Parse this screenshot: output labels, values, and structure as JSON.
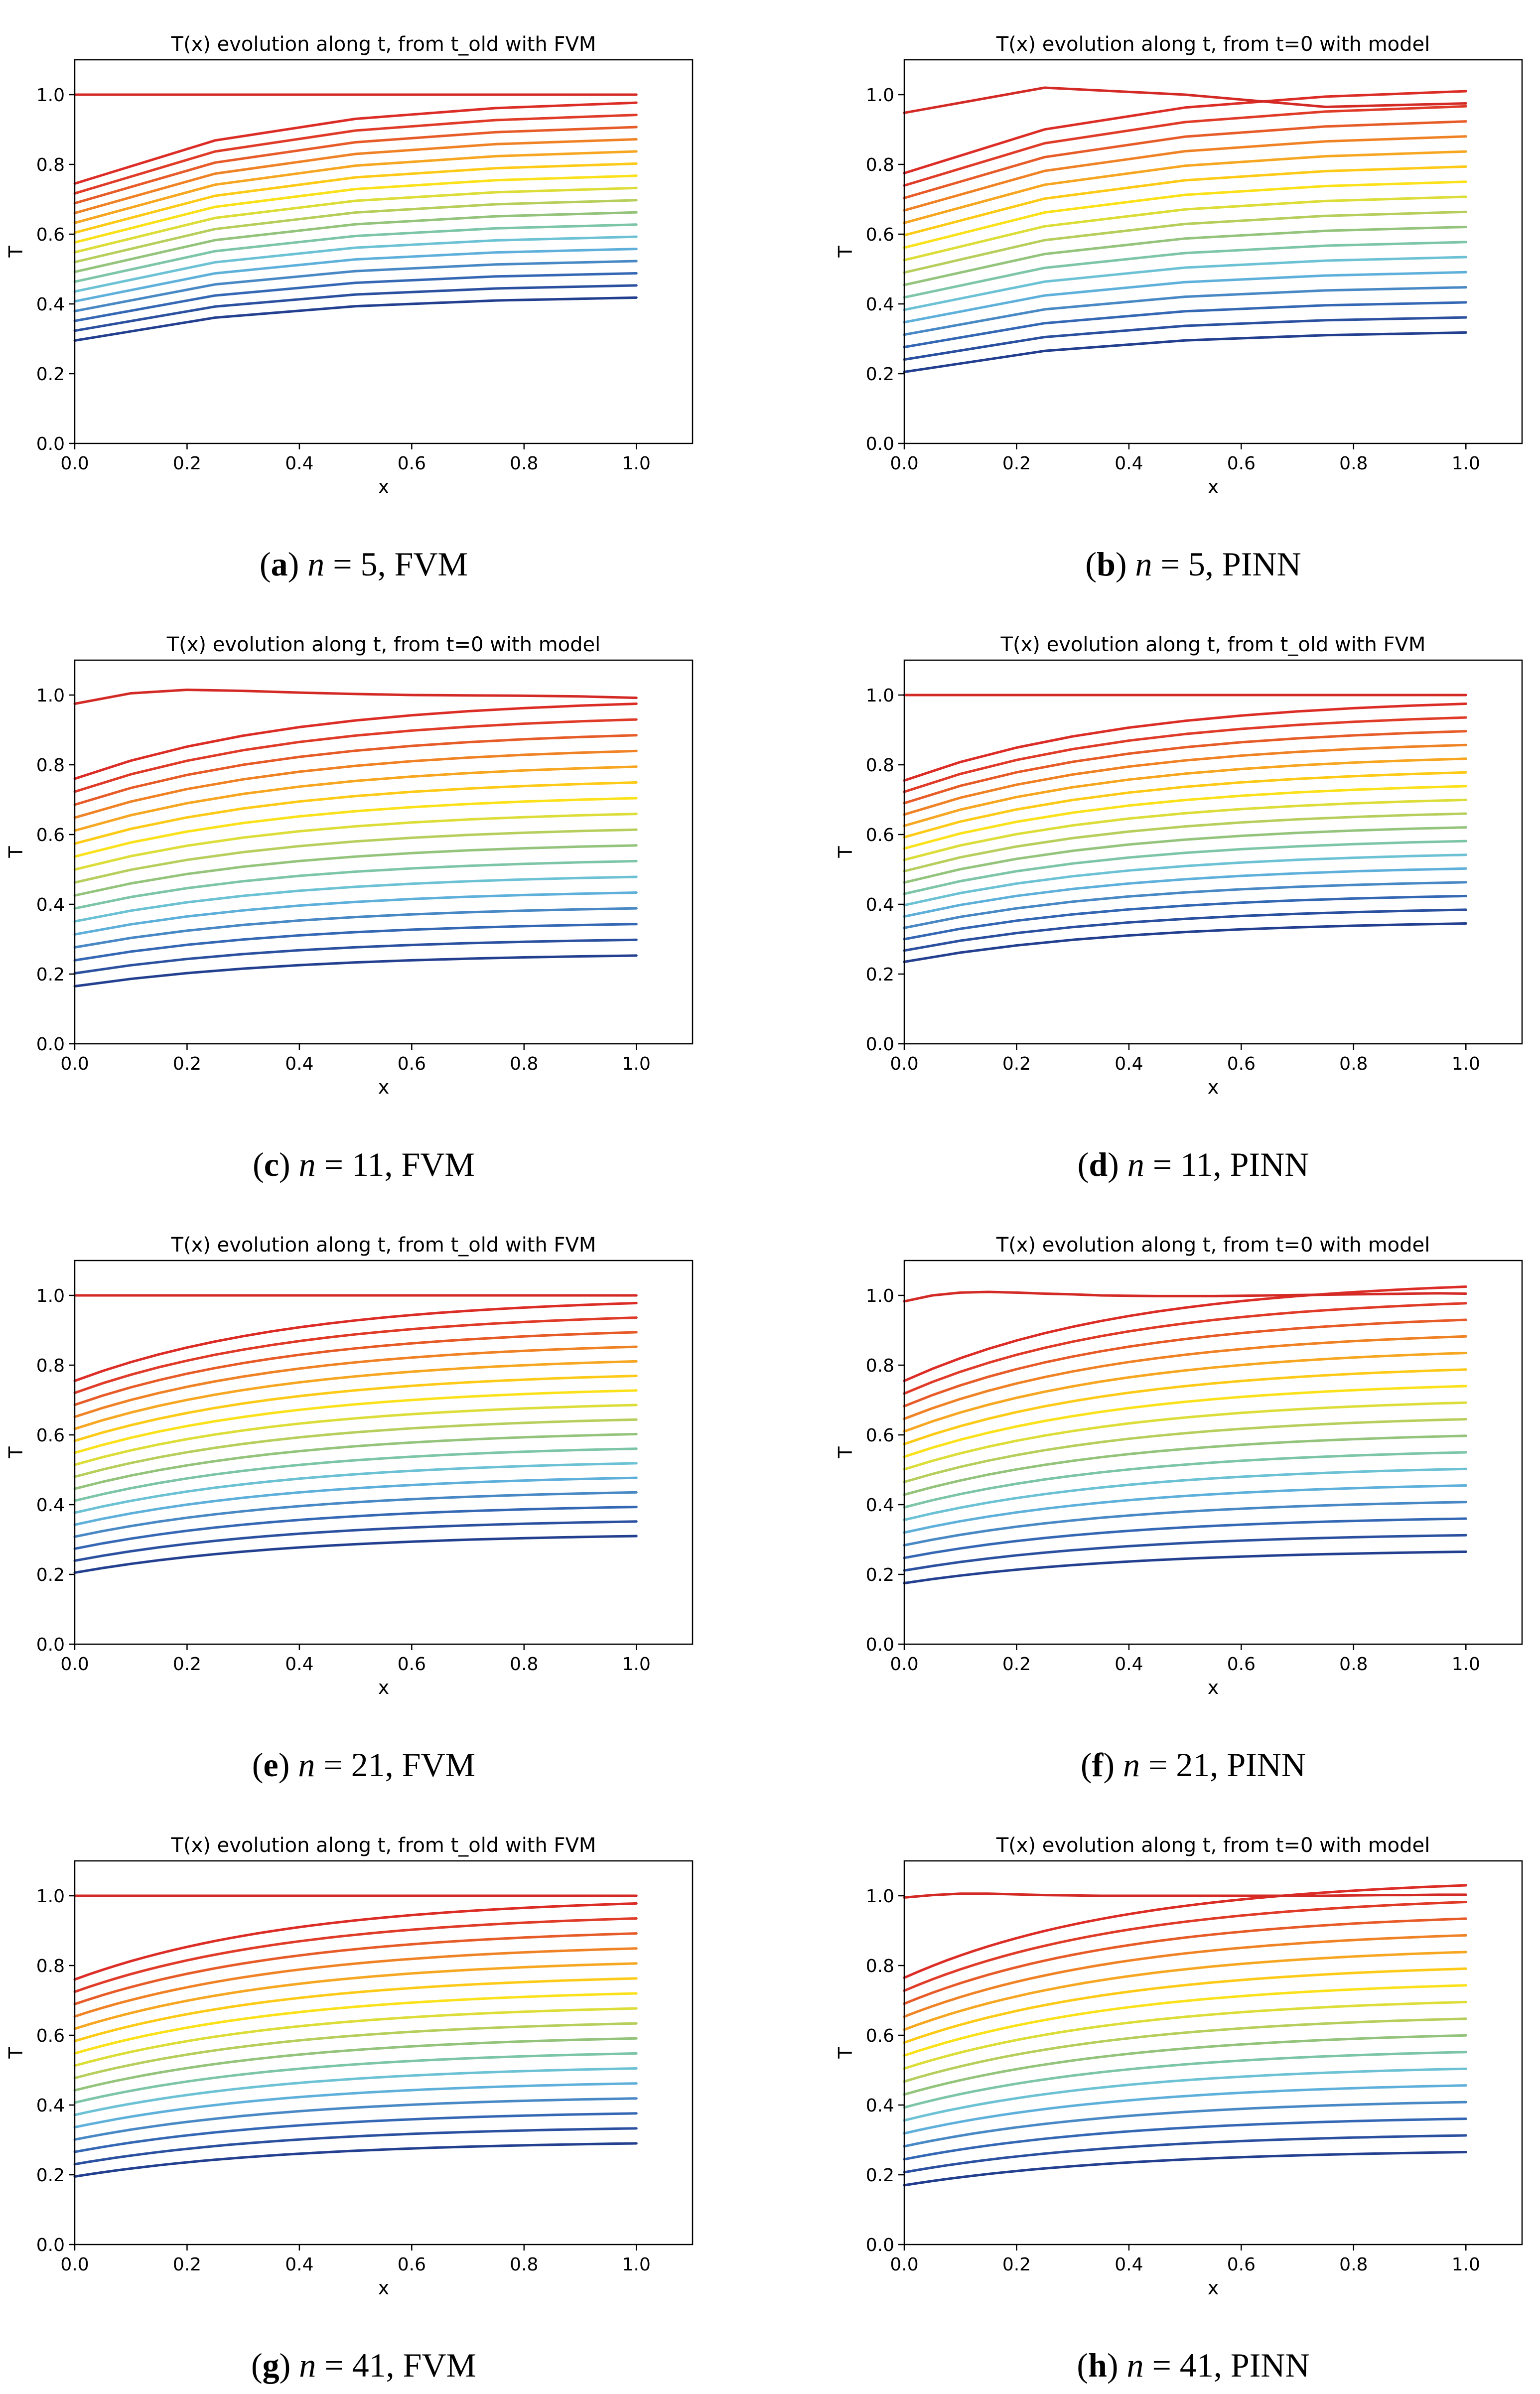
{
  "figure": {
    "palette": [
      "#233f8f",
      "#2a509f",
      "#3568b4",
      "#4888c4",
      "#5eb0db",
      "#6cc2d4",
      "#7cc5a6",
      "#94c47c",
      "#b6cf5c",
      "#dcdd38",
      "#fbe11a",
      "#fcca17",
      "#f6a621",
      "#f08226",
      "#e65b28",
      "#df3b28",
      "#dc2c26",
      "#d42a26"
    ]
  },
  "chart_data": [
    {
      "id": "a",
      "type": "line",
      "title": "T(x) evolution along t, from t_old with FVM",
      "xlabel": "x",
      "ylabel": "T",
      "xlim": [
        0,
        1.1
      ],
      "ylim": [
        0,
        1.1
      ],
      "xticks": [
        "0.0",
        "0.2",
        "0.4",
        "0.6",
        "0.8",
        "1.0"
      ],
      "yticks": [
        "0.0",
        "0.2",
        "0.4",
        "0.6",
        "0.8",
        "1.0"
      ],
      "caption": {
        "letter": "a",
        "n_label": "n",
        "rest": " = 5, FVM"
      },
      "n_curves": 18,
      "x": [
        0,
        0.25,
        0.5,
        0.75,
        1.0
      ],
      "bottom_curve": {
        "start": 0.295,
        "end": 0.418
      },
      "top_curve": {
        "start": 1.0,
        "end": 1.0
      },
      "second_curve": {
        "start": 0.745,
        "end": 0.977
      },
      "shape": 0.36,
      "anomaly": null
    },
    {
      "id": "b",
      "type": "line",
      "title": "T(x) evolution along t, from t=0 with model",
      "xlabel": "x",
      "ylabel": "T",
      "xlim": [
        0,
        1.1
      ],
      "ylim": [
        0,
        1.1
      ],
      "xticks": [
        "0.0",
        "0.2",
        "0.4",
        "0.6",
        "0.8",
        "1.0"
      ],
      "yticks": [
        "0.0",
        "0.2",
        "0.4",
        "0.6",
        "0.8",
        "1.0"
      ],
      "caption": {
        "letter": "b",
        "n_label": "n",
        "rest": " = 5, PINN"
      },
      "n_curves": 18,
      "x": [
        0,
        0.25,
        0.5,
        0.75,
        1.0
      ],
      "bottom_curve": {
        "start": 0.205,
        "end": 0.318
      },
      "top_curve": {
        "start": 0.775,
        "end": 1.01
      },
      "second_curve": null,
      "shape": 0.36,
      "anomaly": {
        "x": [
          0,
          0.25,
          0.5,
          0.75,
          1.0
        ],
        "y": [
          0.948,
          1.02,
          1.0,
          0.965,
          0.975
        ]
      }
    },
    {
      "id": "c",
      "type": "line",
      "title": "T(x) evolution along t, from t=0 with model",
      "xlabel": "x",
      "ylabel": "T",
      "xlim": [
        0,
        1.1
      ],
      "ylim": [
        0,
        1.1
      ],
      "xticks": [
        "0.0",
        "0.2",
        "0.4",
        "0.6",
        "0.8",
        "1.0"
      ],
      "yticks": [
        "0.0",
        "0.2",
        "0.4",
        "0.6",
        "0.8",
        "1.0"
      ],
      "caption": {
        "letter": "c",
        "n_label": "n",
        "rest": " = 11, FVM"
      },
      "n_curves": 18,
      "x": [
        0,
        0.1,
        0.2,
        0.3,
        0.4,
        0.5,
        0.6,
        0.7,
        0.8,
        0.9,
        1.0
      ],
      "bottom_curve": {
        "start": 0.165,
        "end": 0.253
      },
      "top_curve": {
        "start": 0.76,
        "end": 0.975
      },
      "second_curve": null,
      "shape": 0.4,
      "anomaly": {
        "x": [
          0,
          0.1,
          0.2,
          0.3,
          0.4,
          0.5,
          0.6,
          0.7,
          0.8,
          0.9,
          1.0
        ],
        "y": [
          0.975,
          1.005,
          1.015,
          1.012,
          1.007,
          1.003,
          1.0,
          0.999,
          0.998,
          0.996,
          0.992
        ]
      }
    },
    {
      "id": "d",
      "type": "line",
      "title": "T(x) evolution along t, from t_old with FVM",
      "xlabel": "x",
      "ylabel": "T",
      "xlim": [
        0,
        1.1
      ],
      "ylim": [
        0,
        1.1
      ],
      "xticks": [
        "0.0",
        "0.2",
        "0.4",
        "0.6",
        "0.8",
        "1.0"
      ],
      "yticks": [
        "0.0",
        "0.2",
        "0.4",
        "0.6",
        "0.8",
        "1.0"
      ],
      "caption": {
        "letter": "d",
        "n_label": "n",
        "rest": " = 11, PINN"
      },
      "n_curves": 18,
      "x": [
        0,
        0.1,
        0.2,
        0.3,
        0.4,
        0.5,
        0.6,
        0.7,
        0.8,
        0.9,
        1.0
      ],
      "bottom_curve": {
        "start": 0.235,
        "end": 0.345
      },
      "top_curve": {
        "start": 1.0,
        "end": 1.0
      },
      "second_curve": {
        "start": 0.755,
        "end": 0.975
      },
      "shape": 0.4,
      "anomaly": null
    },
    {
      "id": "e",
      "type": "line",
      "title": "T(x) evolution along t, from t_old with FVM",
      "xlabel": "x",
      "ylabel": "T",
      "xlim": [
        0,
        1.1
      ],
      "ylim": [
        0,
        1.1
      ],
      "xticks": [
        "0.0",
        "0.2",
        "0.4",
        "0.6",
        "0.8",
        "1.0"
      ],
      "yticks": [
        "0.0",
        "0.2",
        "0.4",
        "0.6",
        "0.8",
        "1.0"
      ],
      "caption": {
        "letter": "e",
        "n_label": "n",
        "rest": " = 21, FVM"
      },
      "n_curves": 18,
      "x": [
        0,
        0.05,
        0.1,
        0.15,
        0.2,
        0.25,
        0.3,
        0.35,
        0.4,
        0.45,
        0.5,
        0.55,
        0.6,
        0.65,
        0.7,
        0.75,
        0.8,
        0.85,
        0.9,
        0.95,
        1.0
      ],
      "bottom_curve": {
        "start": 0.205,
        "end": 0.31
      },
      "top_curve": {
        "start": 1.0,
        "end": 1.0
      },
      "second_curve": {
        "start": 0.755,
        "end": 0.978
      },
      "shape": 0.4,
      "anomaly": null
    },
    {
      "id": "f",
      "type": "line",
      "title": "T(x) evolution along t, from t=0 with model",
      "xlabel": "x",
      "ylabel": "T",
      "xlim": [
        0,
        1.1
      ],
      "ylim": [
        0,
        1.1
      ],
      "xticks": [
        "0.0",
        "0.2",
        "0.4",
        "0.6",
        "0.8",
        "1.0"
      ],
      "yticks": [
        "0.0",
        "0.2",
        "0.4",
        "0.6",
        "0.8",
        "1.0"
      ],
      "caption": {
        "letter": "f",
        "n_label": "n",
        "rest": " = 21, PINN"
      },
      "n_curves": 18,
      "x": [
        0,
        0.05,
        0.1,
        0.15,
        0.2,
        0.25,
        0.3,
        0.35,
        0.4,
        0.45,
        0.5,
        0.55,
        0.6,
        0.65,
        0.7,
        0.75,
        0.8,
        0.85,
        0.9,
        0.95,
        1.0
      ],
      "bottom_curve": {
        "start": 0.175,
        "end": 0.265
      },
      "top_curve": {
        "start": 0.755,
        "end": 1.025
      },
      "second_curve": null,
      "shape": 0.4,
      "anomaly": {
        "x": [
          0,
          0.05,
          0.1,
          0.15,
          0.2,
          0.25,
          0.3,
          0.35,
          0.4,
          0.45,
          0.5,
          0.55,
          0.6,
          0.65,
          0.7,
          0.75,
          0.8,
          0.85,
          0.9,
          0.95,
          1.0
        ],
        "y": [
          0.983,
          1.0,
          1.008,
          1.01,
          1.008,
          1.005,
          1.003,
          1.0,
          0.999,
          0.998,
          0.998,
          0.998,
          0.999,
          1.0,
          1.001,
          1.002,
          1.003,
          1.004,
          1.005,
          1.006,
          1.005
        ]
      }
    },
    {
      "id": "g",
      "type": "line",
      "title": "T(x) evolution along t, from t_old with FVM",
      "xlabel": "x",
      "ylabel": "T",
      "xlim": [
        0,
        1.1
      ],
      "ylim": [
        0,
        1.1
      ],
      "xticks": [
        "0.0",
        "0.2",
        "0.4",
        "0.6",
        "0.8",
        "1.0"
      ],
      "yticks": [
        "0.0",
        "0.2",
        "0.4",
        "0.6",
        "0.8",
        "1.0"
      ],
      "caption": {
        "letter": "g",
        "n_label": "n",
        "rest": " = 41, FVM"
      },
      "n_curves": 18,
      "x": [
        0,
        0.025,
        0.05,
        0.075,
        0.1,
        0.125,
        0.15,
        0.175,
        0.2,
        0.225,
        0.25,
        0.275,
        0.3,
        0.325,
        0.35,
        0.375,
        0.4,
        0.425,
        0.45,
        0.475,
        0.5,
        0.525,
        0.55,
        0.575,
        0.6,
        0.625,
        0.65,
        0.675,
        0.7,
        0.725,
        0.75,
        0.775,
        0.8,
        0.825,
        0.85,
        0.875,
        0.9,
        0.925,
        0.95,
        0.975,
        1.0
      ],
      "bottom_curve": {
        "start": 0.195,
        "end": 0.29
      },
      "top_curve": {
        "start": 1.0,
        "end": 1.0
      },
      "second_curve": {
        "start": 0.76,
        "end": 0.978
      },
      "shape": 0.4,
      "anomaly": null
    },
    {
      "id": "h",
      "type": "line",
      "title": "T(x) evolution along t, from t=0 with model",
      "xlabel": "x",
      "ylabel": "T",
      "xlim": [
        0,
        1.1
      ],
      "ylim": [
        0,
        1.1
      ],
      "xticks": [
        "0.0",
        "0.2",
        "0.4",
        "0.6",
        "0.8",
        "1.0"
      ],
      "yticks": [
        "0.0",
        "0.2",
        "0.4",
        "0.6",
        "0.8",
        "1.0"
      ],
      "caption": {
        "letter": "h",
        "n_label": "n",
        "rest": " = 41, PINN"
      },
      "n_curves": 18,
      "x": [
        0,
        0.025,
        0.05,
        0.075,
        0.1,
        0.125,
        0.15,
        0.175,
        0.2,
        0.225,
        0.25,
        0.275,
        0.3,
        0.325,
        0.35,
        0.375,
        0.4,
        0.425,
        0.45,
        0.475,
        0.5,
        0.525,
        0.55,
        0.575,
        0.6,
        0.625,
        0.65,
        0.675,
        0.7,
        0.725,
        0.75,
        0.775,
        0.8,
        0.825,
        0.85,
        0.875,
        0.9,
        0.925,
        0.95,
        0.975,
        1.0
      ],
      "bottom_curve": {
        "start": 0.17,
        "end": 0.265
      },
      "top_curve": {
        "start": 0.765,
        "end": 1.03
      },
      "second_curve": null,
      "shape": 0.4,
      "anomaly": {
        "x": [
          0,
          0.05,
          0.1,
          0.15,
          0.2,
          0.25,
          0.3,
          0.35,
          0.4,
          0.45,
          0.5,
          0.55,
          0.6,
          0.65,
          0.7,
          0.75,
          0.8,
          0.85,
          0.9,
          0.95,
          1.0
        ],
        "y": [
          0.995,
          1.002,
          1.006,
          1.006,
          1.004,
          1.002,
          1.001,
          1.0,
          1.0,
          1.0,
          1.0,
          1.0,
          1.0,
          1.0,
          1.0,
          1.0,
          1.001,
          1.002,
          1.002,
          1.003,
          1.003
        ]
      }
    }
  ]
}
